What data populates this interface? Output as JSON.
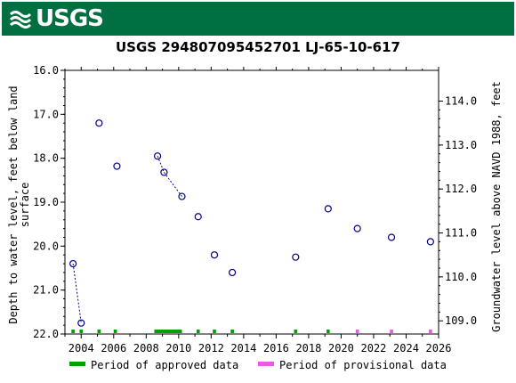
{
  "header": {
    "agency": "USGS",
    "brand_color": "#006f41",
    "logo_icon": "usgs-wave-icon"
  },
  "chart_data": {
    "type": "scatter",
    "title": "USGS 294807095452701 LJ-65-10-617",
    "ylabel_left": "Depth to water level, feet below land surface",
    "ylabel_left_lines": [
      "Depth to water level, feet below land",
      "surface"
    ],
    "ylabel_right": "Groundwater level above NAVD 1988, feet",
    "x_range": [
      2003.0,
      2026.0
    ],
    "x_ticks": [
      2004,
      2006,
      2008,
      2010,
      2012,
      2014,
      2016,
      2018,
      2020,
      2022,
      2024,
      2026
    ],
    "y_range": [
      16.0,
      22.0
    ],
    "y_inverted": true,
    "y_ticks": [
      "16.0",
      "17.0",
      "18.0",
      "19.0",
      "20.0",
      "21.0",
      "22.0"
    ],
    "y2_ticks": [
      "114.0",
      "113.0",
      "112.0",
      "111.0",
      "110.0",
      "109.0"
    ],
    "y2_values": [
      114.0,
      113.0,
      112.0,
      111.0,
      110.0,
      109.0
    ],
    "y2_range": [
      114.7,
      108.7
    ],
    "series": [
      {
        "marker": "open-circle",
        "color": "#00008b",
        "x": [
          2003.5,
          2004.0,
          2005.1,
          2006.2,
          2008.7,
          2009.1,
          2010.2,
          2011.2,
          2012.2,
          2013.3,
          2017.2,
          2019.2,
          2021.0,
          2023.1,
          2025.5
        ],
        "y": [
          20.4,
          21.75,
          17.2,
          18.18,
          17.95,
          18.32,
          18.87,
          19.33,
          20.2,
          20.6,
          20.25,
          19.15,
          19.6,
          19.8,
          19.9
        ]
      }
    ],
    "connected_pairs": [
      [
        0,
        1
      ],
      [
        4,
        5
      ],
      [
        5,
        6
      ]
    ],
    "approval_bars": {
      "approved": [
        [
          2003.4,
          2003.6
        ],
        [
          2003.9,
          2004.1
        ],
        [
          2005.0,
          2005.2
        ],
        [
          2006.0,
          2006.2
        ],
        [
          2008.5,
          2010.2
        ],
        [
          2011.1,
          2011.3
        ],
        [
          2012.1,
          2012.3
        ],
        [
          2013.2,
          2013.4
        ],
        [
          2017.1,
          2017.3
        ],
        [
          2019.1,
          2019.3
        ]
      ],
      "provisional": [
        [
          2020.9,
          2021.1
        ],
        [
          2023.0,
          2023.2
        ],
        [
          2025.4,
          2025.6
        ]
      ]
    },
    "legend": [
      {
        "label": "Period of approved data",
        "color": "#00a000"
      },
      {
        "label": "Period of provisional data",
        "color": "#e55ce5"
      }
    ],
    "legend_position": "bottom",
    "grid": false
  }
}
